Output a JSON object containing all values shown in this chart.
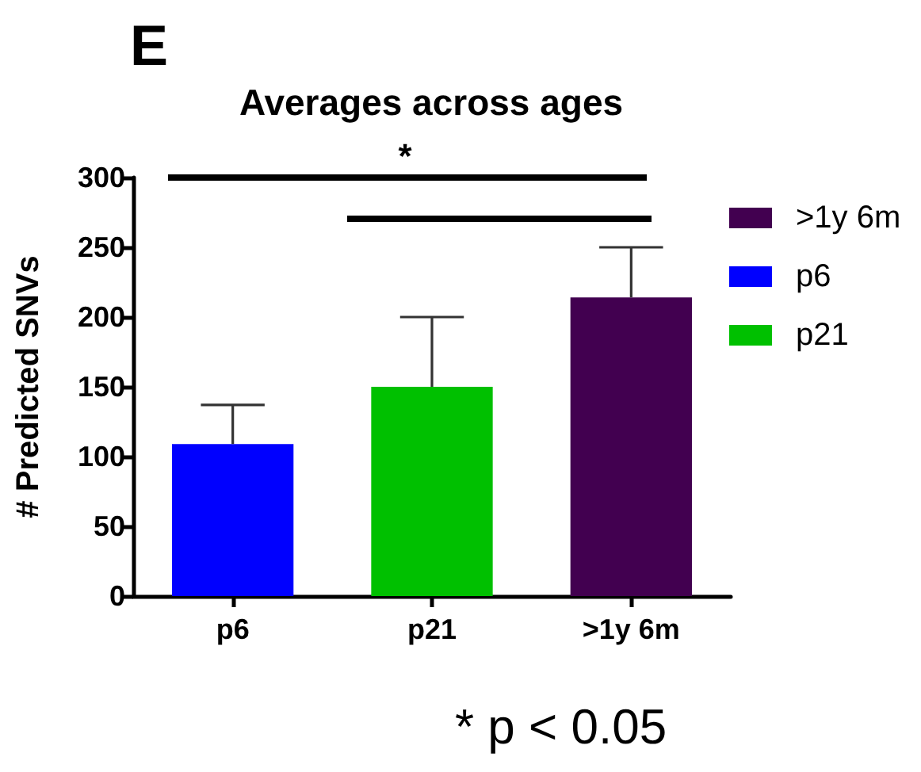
{
  "chart_data": {
    "type": "bar",
    "title": "Averages across ages",
    "ylabel": "# Predicted SNVs",
    "categories": [
      "p6",
      "p21",
      ">1y 6m"
    ],
    "series": [
      {
        "name": ">1y 6m",
        "color": "#420050",
        "values": [
          null,
          null,
          214
        ],
        "errors": [
          null,
          null,
          [
            214,
            250
          ]
        ]
      },
      {
        "name": "p6",
        "color": "#0000ff",
        "values": [
          109,
          null,
          null
        ],
        "errors": [
          [
            109,
            137
          ],
          null,
          null
        ]
      },
      {
        "name": "p21",
        "color": "#00c000",
        "values": [
          null,
          150,
          null
        ],
        "errors": [
          null,
          [
            150,
            200
          ],
          null
        ]
      }
    ],
    "ylim": [
      0,
      300
    ],
    "yticks": [
      0,
      50,
      100,
      150,
      200,
      250,
      300
    ],
    "grid": false,
    "legend": "top right",
    "annotations": [
      "E",
      "*",
      "* p < 0.05"
    ]
  }
}
